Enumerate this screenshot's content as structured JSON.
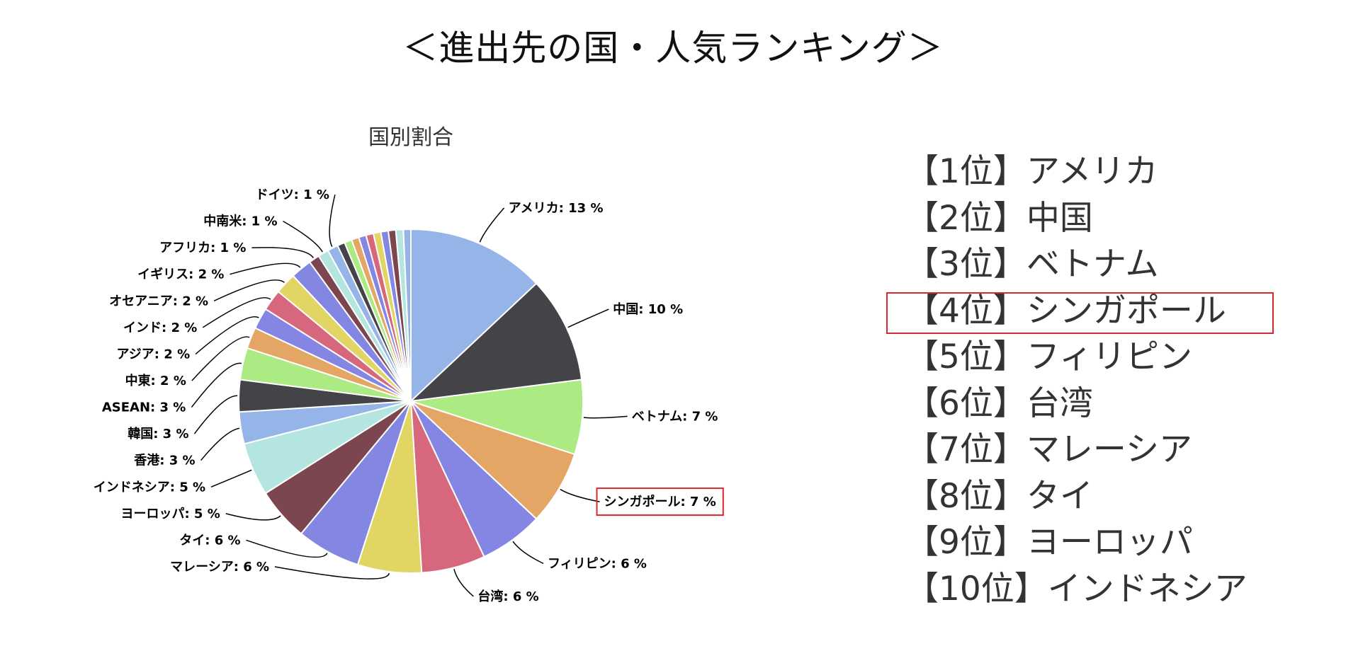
{
  "page": {
    "title": "＜進出先の国・人気ランキング＞"
  },
  "ranking": {
    "items": [
      "【1位】アメリカ",
      "【2位】中国",
      "【3位】ベトナム",
      "【4位】シンガポール",
      "【5位】フィリピン",
      "【6位】台湾",
      "【7位】マレーシア",
      "【8位】タイ",
      "【9位】ヨーロッパ",
      "【10位】インドネシア"
    ],
    "highlighted_index": 3,
    "highlight_color": "#d9282f"
  },
  "chart_data": {
    "type": "pie",
    "title": "国別割合",
    "highlighted_label": "シンガポール",
    "label_format": "{name}: {value} %",
    "slices": [
      {
        "name": "アメリカ",
        "value": 13,
        "color": "#95b4e8"
      },
      {
        "name": "中国",
        "value": 10,
        "color": "#434348"
      },
      {
        "name": "ベトナム",
        "value": 7,
        "color": "#acea83"
      },
      {
        "name": "シンガポール",
        "value": 7,
        "color": "#e4a664"
      },
      {
        "name": "フィリピン",
        "value": 6,
        "color": "#8586e4"
      },
      {
        "name": "台湾",
        "value": 6,
        "color": "#d7677c"
      },
      {
        "name": "マレーシア",
        "value": 6,
        "color": "#e1d564"
      },
      {
        "name": "タイ",
        "value": 6,
        "color": "#8387e1"
      },
      {
        "name": "ヨーロッパ",
        "value": 5,
        "color": "#7b4650"
      },
      {
        "name": "インドネシア",
        "value": 5,
        "color": "#b5e5e0"
      },
      {
        "name": "香港",
        "value": 3,
        "color": "#95b4e8"
      },
      {
        "name": "韓国",
        "value": 3,
        "color": "#434348"
      },
      {
        "name": "ASEAN",
        "value": 3,
        "color": "#acea83"
      },
      {
        "name": "中東",
        "value": 2,
        "color": "#e4a664"
      },
      {
        "name": "アジア",
        "value": 2,
        "color": "#8586e4"
      },
      {
        "name": "インド",
        "value": 2,
        "color": "#d7677c"
      },
      {
        "name": "オセアニア",
        "value": 2,
        "color": "#e1d564"
      },
      {
        "name": "イギリス",
        "value": 2,
        "color": "#8387e1"
      },
      {
        "name": "アフリカ",
        "value": 1,
        "color": "#7b4650"
      },
      {
        "name": "中南米",
        "value": 1,
        "color": "#b5e5e0"
      },
      {
        "name": "ドイツ",
        "value": 1,
        "color": "#95b4e8"
      }
    ],
    "other_slices_colors": [
      "#434348",
      "#acea83",
      "#e4a664",
      "#8586e4",
      "#d7677c",
      "#e1d564",
      "#8387e1",
      "#7b4650",
      "#b5e5e0",
      "#95b4e8"
    ]
  }
}
